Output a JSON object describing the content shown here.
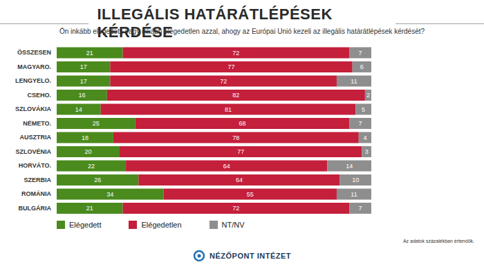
{
  "chart_data": {
    "type": "bar",
    "title": "ILLEGÁLIS HATÁRÁTLÉPÉSEK KÉRDÉSE",
    "subtitle": "Ön inkább elégedett, vagy inkább elégedetlen azzal, ahogy az Európai Unió kezeli az illegális határátlépések kérdését?",
    "orientation": "horizontal",
    "stacked": true,
    "data_labels": true,
    "tick_labels": "y",
    "legend": "bottom",
    "grid": false,
    "xlim": [
      0,
      100
    ],
    "categories": [
      "ÖSSZESEN",
      "MAGYARO.",
      "LENGYELO.",
      "CSEHO.",
      "SZLOVÁKIA",
      "NÉMETO.",
      "AUSZTRIA",
      "SZLOVÉNIA",
      "HORVÁTO.",
      "SZERBIA",
      "ROMÁNIA",
      "BULGÁRIA"
    ],
    "series": [
      {
        "name": "Elégedett",
        "color": "#4b8b1e",
        "values": [
          21,
          17,
          17,
          16,
          14,
          25,
          18,
          20,
          22,
          26,
          34,
          21
        ]
      },
      {
        "name": "Elégedetlen",
        "color": "#c41f3b",
        "values": [
          72,
          77,
          72,
          82,
          81,
          68,
          78,
          77,
          64,
          64,
          55,
          72
        ]
      },
      {
        "name": "NT/NV",
        "color": "#8e8e8e",
        "values": [
          7,
          6,
          11,
          2,
          5,
          7,
          4,
          3,
          14,
          10,
          11,
          7
        ]
      }
    ],
    "annotations": [
      "Az adatok százalékban értendők.",
      "NÉZŐPONT INTÉZET"
    ]
  }
}
